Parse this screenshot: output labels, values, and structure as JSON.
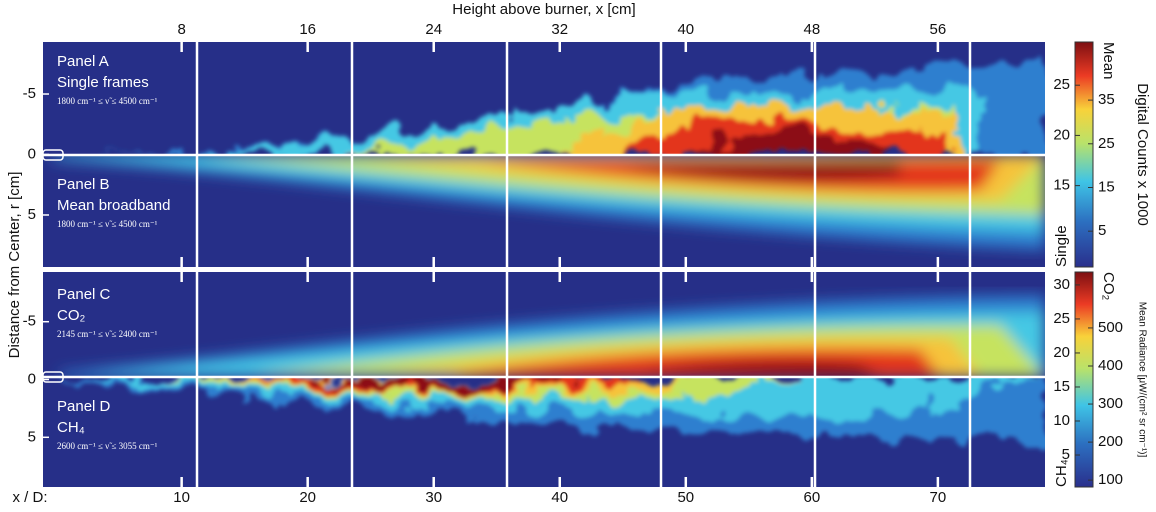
{
  "chart_data": {
    "type": "heatmap",
    "x_label": "Height above burner, x [cm]",
    "xlim": [
      -0.8,
      62.8
    ],
    "xticks": [
      8,
      16,
      24,
      32,
      40,
      48,
      56
    ],
    "x2_label": "x / D:",
    "x2lim": [
      -1,
      78.5
    ],
    "x2ticks": [
      10,
      20,
      30,
      40,
      50,
      60,
      70
    ],
    "y_label": "Distance from Center, r [cm]",
    "ylim": [
      -9.3,
      9.3
    ],
    "yticks": [
      -5,
      0,
      5
    ],
    "panels": [
      {
        "label": "Panel A",
        "name": "Single frames",
        "range": "1800 cm⁻¹ ≤ ν̃ ≤ 4500 cm⁻¹"
      },
      {
        "label": "Panel B",
        "name": "Mean broadband",
        "range": "1800 cm⁻¹ ≤ ν̃ ≤ 4500 cm⁻¹"
      },
      {
        "label": "Panel C",
        "name": "CO₂",
        "range": "2145 cm⁻¹ ≤ ν̃ ≤ 2400 cm⁻¹"
      },
      {
        "label": "Panel D",
        "name": "CH₄",
        "range": "2600 cm⁻¹ ≤ ν̃ ≤ 3055 cm⁻¹"
      }
    ],
    "colorbars": [
      {
        "title": "Digital Counts x 1000",
        "top_label": "Mean",
        "bottom_label": "Single",
        "lim_left": [
          6.9,
          29.3
        ],
        "ticks_left": [
          15,
          20,
          25
        ],
        "lim_right": [
          -3.2,
          48.3
        ],
        "ticks_right": [
          5,
          15,
          25,
          35
        ]
      },
      {
        "title": "Mean Radiance [μW/(cm² sr cm⁻¹)]",
        "top_label": "CO₂",
        "bottom_label": "CH₄",
        "lim_left": [
          0.3,
          31.9
        ],
        "ticks_left": [
          5,
          10,
          15,
          20,
          25,
          30
        ],
        "lim_right": [
          82,
          647
        ],
        "ticks_right": [
          100,
          200,
          300,
          400,
          500
        ]
      }
    ]
  }
}
